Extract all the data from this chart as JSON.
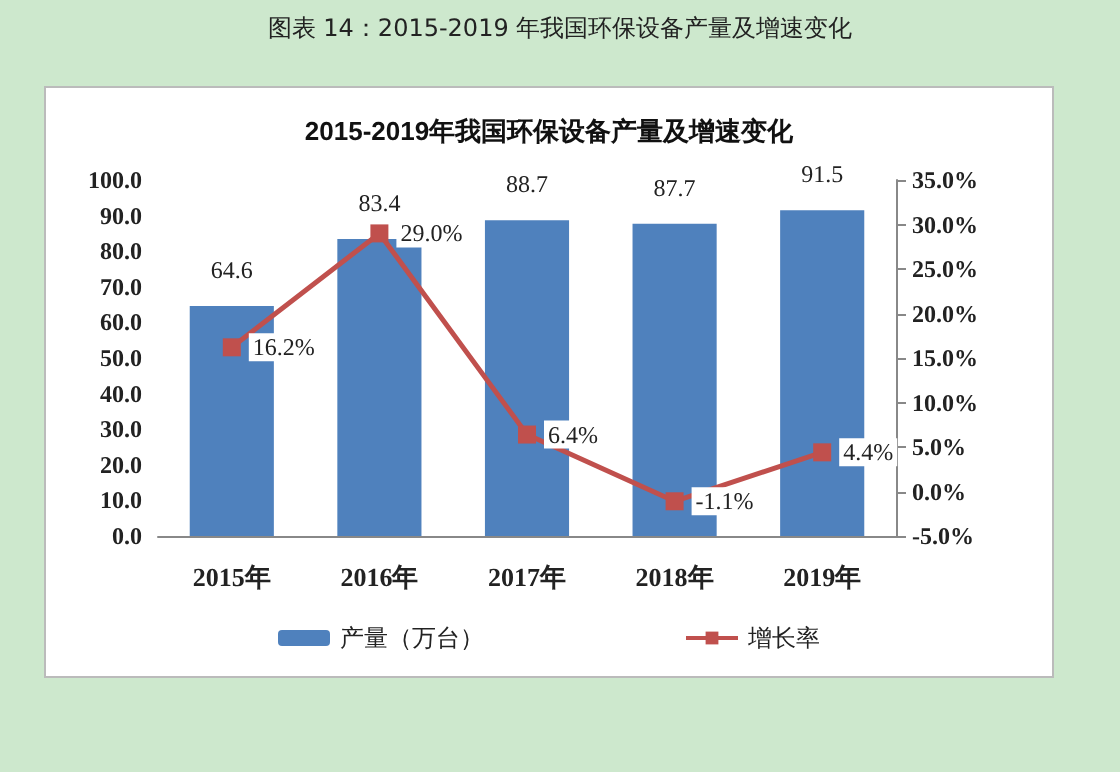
{
  "chart_data": {
    "type": "bar",
    "title": "2015-2019年我国环保设备产量及增速变化",
    "annotations": [
      "图表 14：2015-2019 年我国环保设备产量及增速变化"
    ],
    "categories": [
      "2015年",
      "2016年",
      "2017年",
      "2018年",
      "2019年"
    ],
    "series": [
      {
        "name": "产量（万台）",
        "color": "#4f81bd",
        "values": [
          64.6,
          83.4,
          88.7,
          87.7,
          91.5
        ],
        "value_labels": [
          "64.6",
          "83.4",
          "88.7",
          "87.7",
          "91.5"
        ]
      },
      {
        "name": "增长率",
        "type": "line",
        "axis": "y2",
        "color": "#c0504d",
        "marker": "square",
        "values": [
          16.2,
          29.0,
          6.4,
          -1.1,
          4.4
        ],
        "value_labels": [
          "16.2%",
          "29.0%",
          "6.4%",
          "-1.1%",
          "4.4%"
        ]
      }
    ],
    "ylim": [
      0,
      100
    ],
    "yticks": [
      {
        "value": 0,
        "label": "0.0"
      },
      {
        "value": 10,
        "label": "10.0"
      },
      {
        "value": 20,
        "label": "20.0"
      },
      {
        "value": 30,
        "label": "30.0"
      },
      {
        "value": 40,
        "label": "40.0"
      },
      {
        "value": 50,
        "label": "50.0"
      },
      {
        "value": 60,
        "label": "60.0"
      },
      {
        "value": 70,
        "label": "70.0"
      },
      {
        "value": 80,
        "label": "80.0"
      },
      {
        "value": 90,
        "label": "90.0"
      },
      {
        "value": 100,
        "label": "100.0"
      }
    ],
    "y2lim": [
      -5,
      35
    ],
    "y2ticks": [
      {
        "value": -5,
        "label": "-5.0%"
      },
      {
        "value": 0,
        "label": "0.0%"
      },
      {
        "value": 5,
        "label": "5.0%"
      },
      {
        "value": 10,
        "label": "10.0%"
      },
      {
        "value": 15,
        "label": "15.0%"
      },
      {
        "value": 20,
        "label": "20.0%"
      },
      {
        "value": 25,
        "label": "25.0%"
      },
      {
        "value": 30,
        "label": "30.0%"
      },
      {
        "value": 35,
        "label": "35.0%"
      }
    ],
    "grid": false,
    "legend": "bottom"
  }
}
